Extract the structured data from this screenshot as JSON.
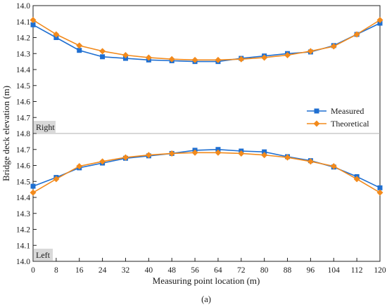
{
  "chart_data": {
    "type": "line",
    "xlabel": "Measuring point location (m)",
    "ylabel": "Bridge deck elevation (m)",
    "caption": "(a)",
    "x": [
      0,
      8,
      16,
      24,
      32,
      40,
      48,
      56,
      64,
      72,
      80,
      88,
      96,
      104,
      112,
      120
    ],
    "xlim": [
      0,
      120
    ],
    "xticks": [
      "0",
      "8",
      "16",
      "24",
      "32",
      "40",
      "48",
      "56",
      "64",
      "72",
      "80",
      "88",
      "96",
      "104",
      "112",
      "120"
    ],
    "legend": {
      "position": "right-middle",
      "entries": [
        "Measured",
        "Theoretical"
      ]
    },
    "colors": {
      "Measured": "#1f6fd1",
      "Theoretical": "#f28a1c",
      "divider": "#b0b0b0",
      "tag_bg": "#d9d9d9"
    },
    "panels": [
      {
        "tag": "Right",
        "yaxis": "inverted",
        "ylim": [
          14.0,
          14.8
        ],
        "yticks": [
          "14.0",
          "14.1",
          "14.2",
          "14.3",
          "14.4",
          "14.5",
          "14.6",
          "14.7",
          "14.8"
        ],
        "series": [
          {
            "name": "Measured",
            "marker": "square",
            "values": [
              14.12,
              14.2,
              14.28,
              14.32,
              14.33,
              14.34,
              14.345,
              14.35,
              14.35,
              14.33,
              14.315,
              14.3,
              14.29,
              14.25,
              14.18,
              14.11
            ]
          },
          {
            "name": "Theoretical",
            "marker": "diamond",
            "values": [
              14.09,
              14.18,
              14.25,
              14.285,
              14.31,
              14.325,
              14.335,
              14.34,
              14.34,
              14.335,
              14.325,
              14.31,
              14.285,
              14.255,
              14.18,
              14.09
            ]
          }
        ]
      },
      {
        "tag": "Left",
        "yaxis": "normal",
        "ylim": [
          14.0,
          14.8
        ],
        "yticks": [
          "14.0",
          "14.1",
          "14.2",
          "14.3",
          "14.4",
          "14.5",
          "14.6",
          "14.7"
        ],
        "series": [
          {
            "name": "Measured",
            "marker": "square",
            "values": [
              14.47,
              14.525,
              14.585,
              14.615,
              14.645,
              14.66,
              14.675,
              14.695,
              14.7,
              14.69,
              14.685,
              14.655,
              14.63,
              14.59,
              14.53,
              14.46
            ]
          },
          {
            "name": "Theoretical",
            "marker": "diamond",
            "values": [
              14.43,
              14.515,
              14.595,
              14.625,
              14.65,
              14.665,
              14.675,
              14.68,
              14.68,
              14.675,
              14.665,
              14.65,
              14.625,
              14.595,
              14.515,
              14.43
            ]
          }
        ]
      }
    ]
  }
}
